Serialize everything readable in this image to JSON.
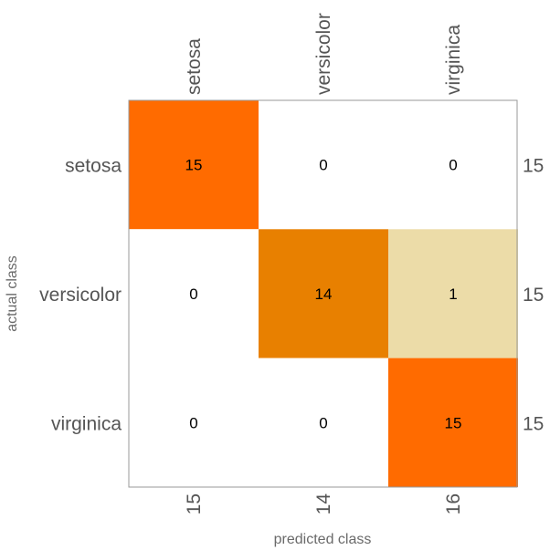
{
  "chart_data": {
    "type": "heatmap",
    "classes": [
      "setosa",
      "versicolor",
      "virginica"
    ],
    "matrix": [
      [
        15,
        0,
        0
      ],
      [
        0,
        14,
        1
      ],
      [
        0,
        0,
        15
      ]
    ],
    "row_totals": [
      15,
      15,
      15
    ],
    "column_totals": [
      15,
      14,
      16
    ],
    "xlabel": "predicted class",
    "ylabel": "actual class",
    "cell_colors": [
      [
        "#ff6b00",
        "#ffffff",
        "#ffffff"
      ],
      [
        "#ffffff",
        "#e88000",
        "#ecdca8"
      ],
      [
        "#ffffff",
        "#ffffff",
        "#ff6b00"
      ]
    ],
    "frame_color": "#9a9a9a"
  }
}
